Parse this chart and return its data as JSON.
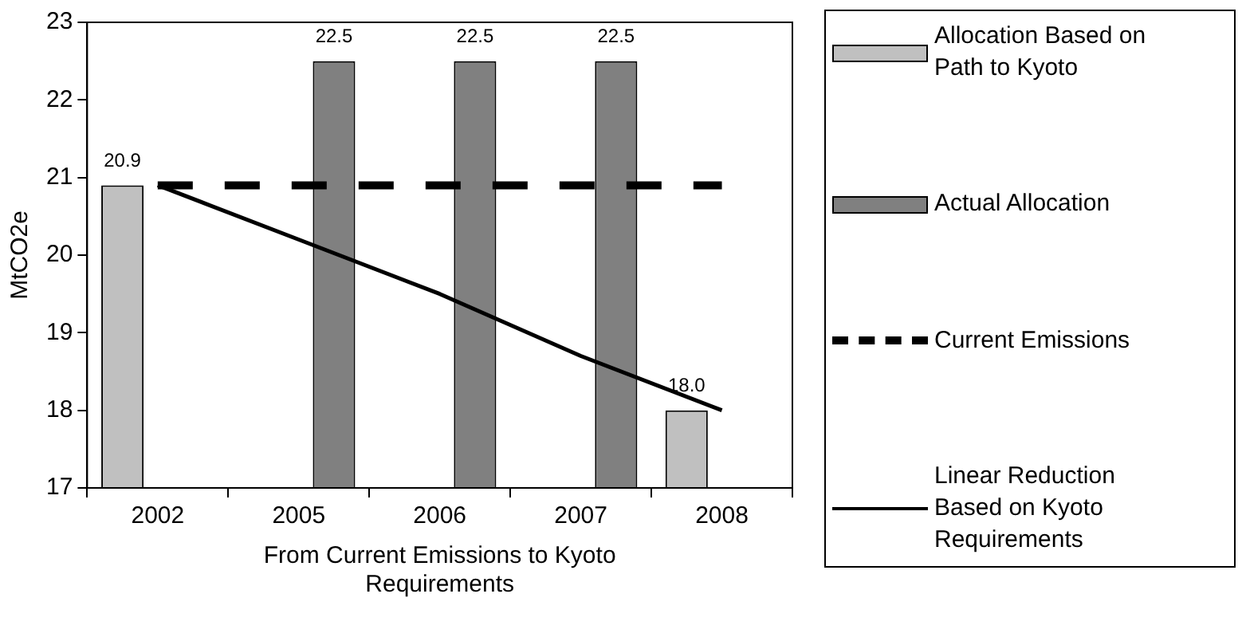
{
  "chart_data": {
    "type": "bar",
    "xlabel": "From Current Emissions to Kyoto Requirements",
    "ylabel": "MtCO2e",
    "categories": [
      "2002",
      "2005",
      "2006",
      "2007",
      "2008"
    ],
    "ylim": [
      17,
      23
    ],
    "yticks": [
      17,
      18,
      19,
      20,
      21,
      22,
      23
    ],
    "grid": false,
    "legend": "right",
    "marker": "none",
    "series": [
      {
        "name": "Allocation Based on Path to Kyoto",
        "color": "#c0c0c0",
        "values": [
          20.9,
          null,
          null,
          null,
          18.0
        ],
        "value_labels": [
          "20.9",
          null,
          null,
          null,
          "18.0"
        ]
      },
      {
        "name": "Actual Allocation",
        "color": "#808080",
        "values": [
          null,
          22.5,
          22.5,
          22.5,
          null
        ],
        "value_labels": [
          null,
          "22.5",
          "22.5",
          "22.5",
          null
        ]
      },
      {
        "name": "Current Emissions",
        "type": "line",
        "color": "#000000",
        "line_style": "dashed",
        "values": [
          20.9,
          20.9,
          20.9,
          20.9,
          20.9
        ]
      },
      {
        "name": "Linear Reduction Based on Kyoto Requirements",
        "type": "line",
        "color": "#000000",
        "line_style": "solid",
        "values": [
          20.9,
          20.2,
          19.5,
          18.7,
          18.0
        ]
      }
    ]
  }
}
